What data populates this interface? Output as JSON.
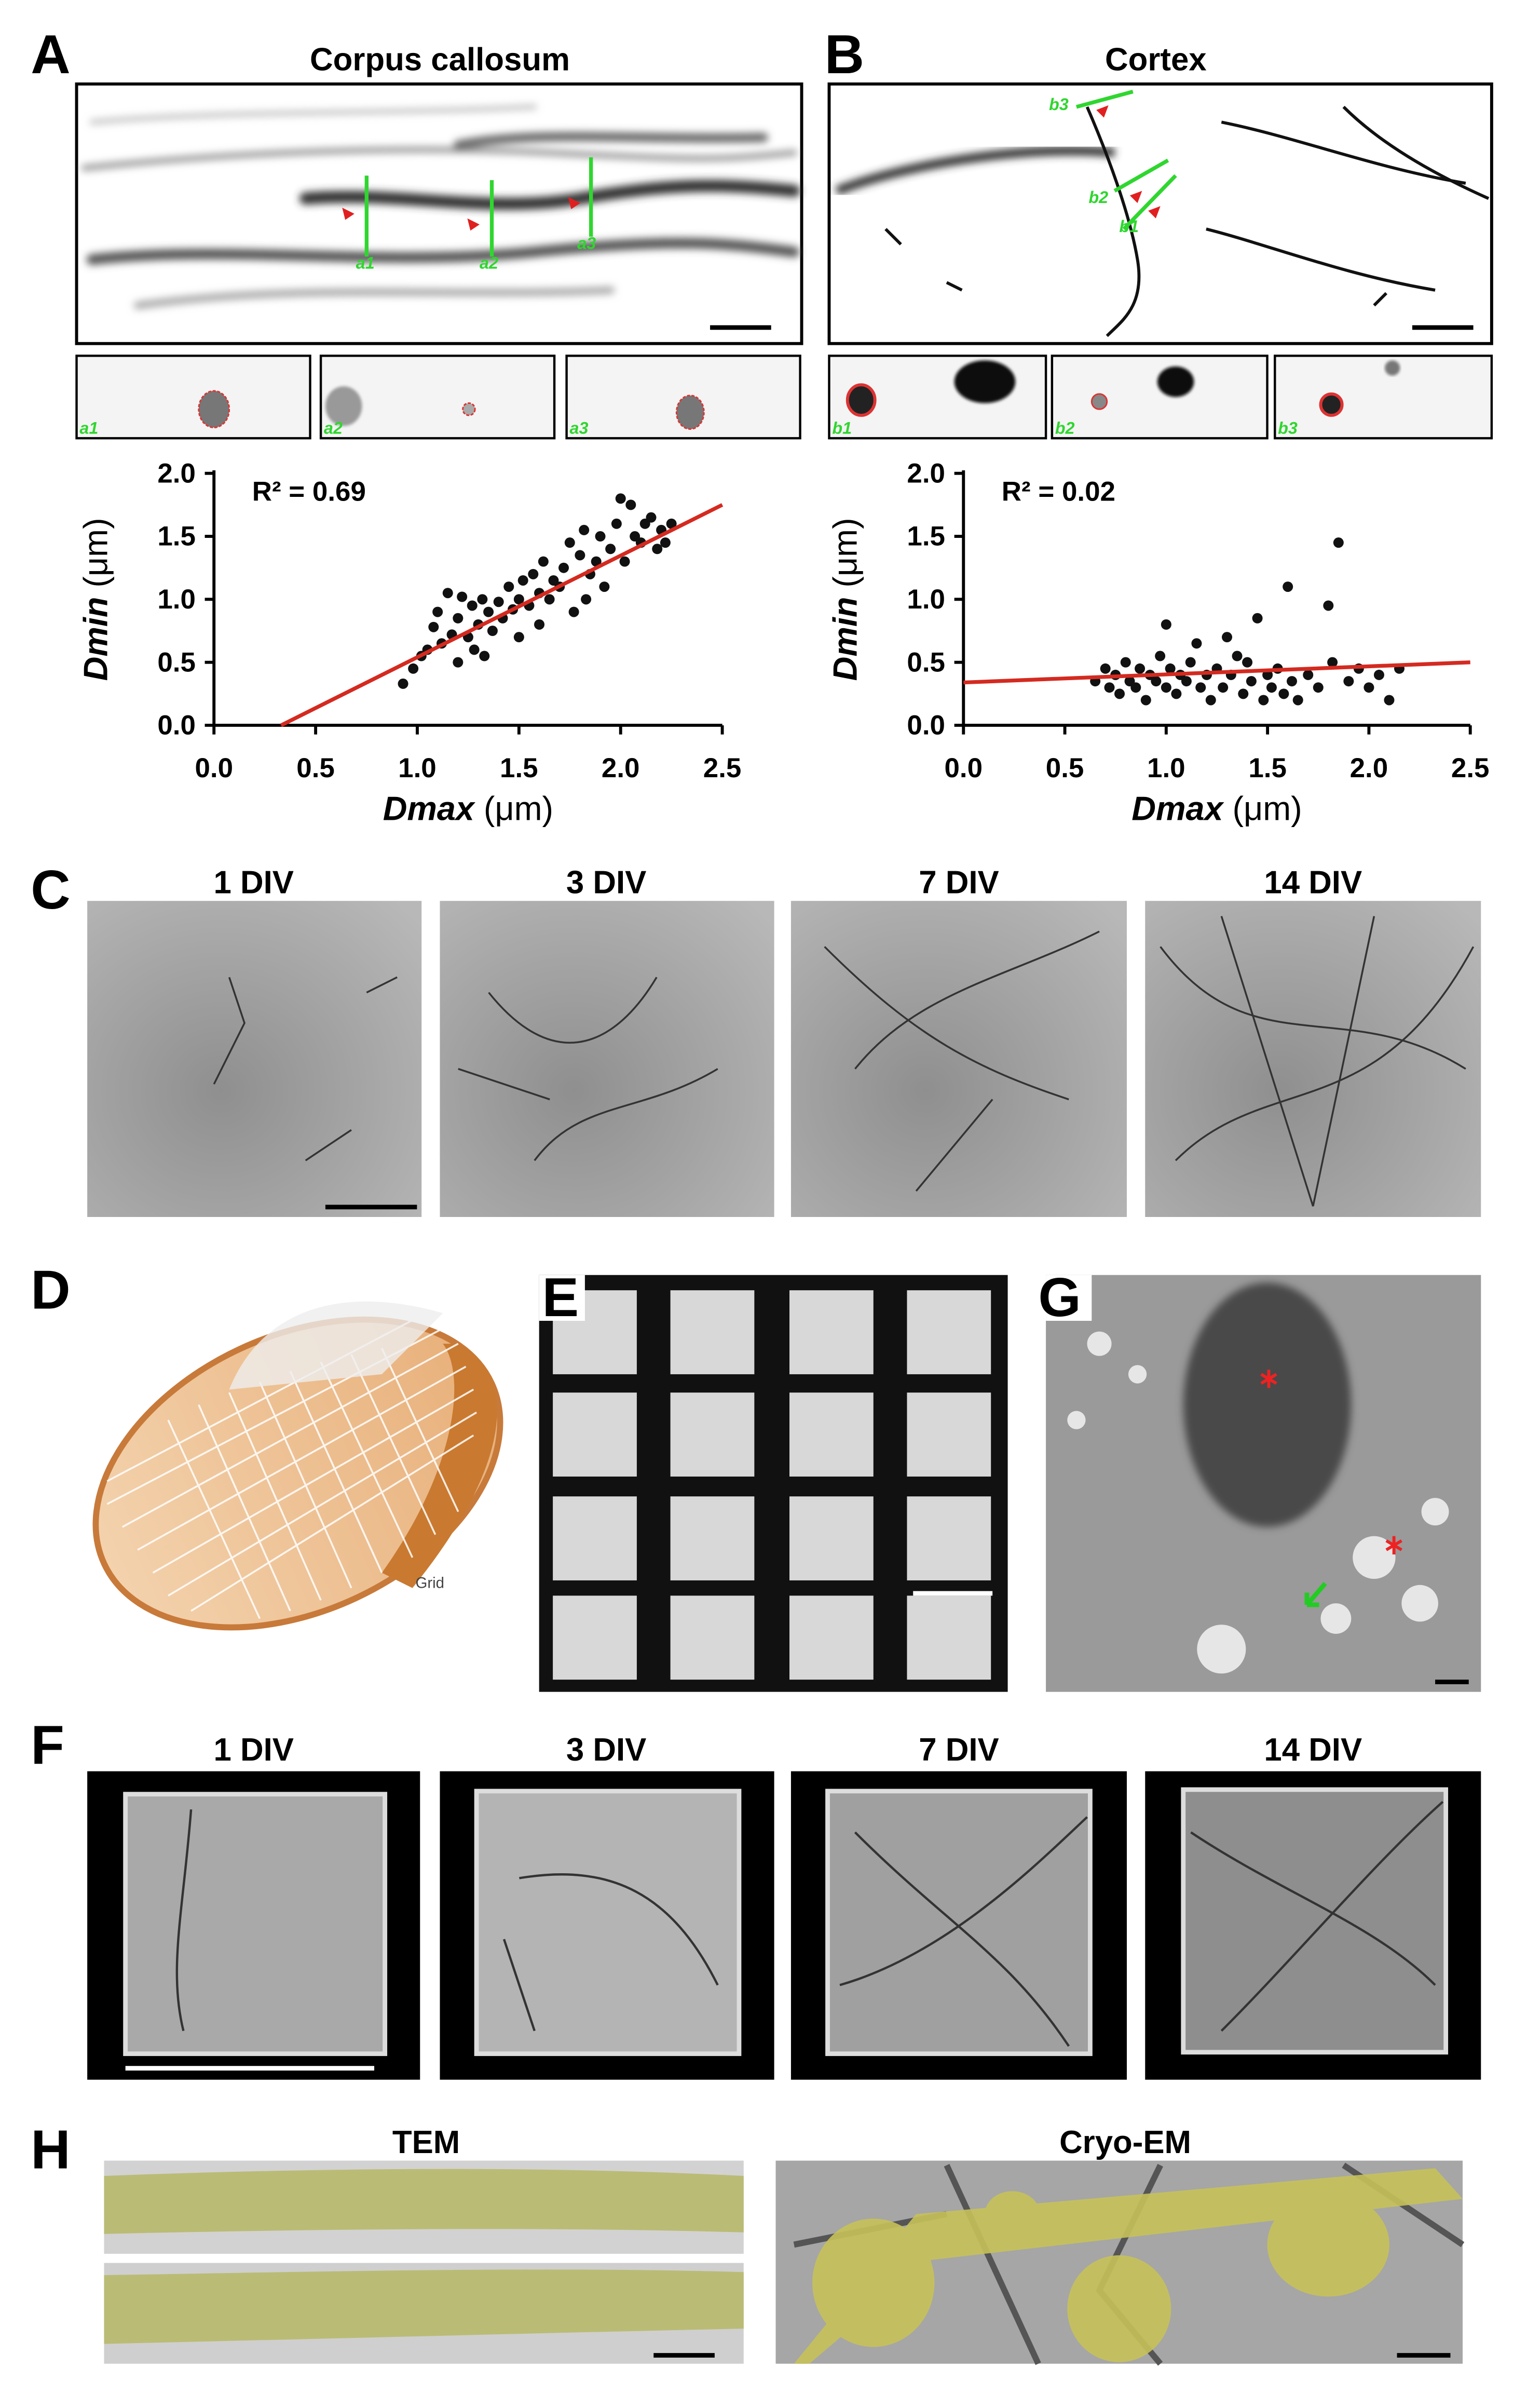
{
  "panels": {
    "A": {
      "label": "A",
      "title": "Corpus callosum",
      "image_labels": [
        "a1",
        "a2",
        "a3"
      ],
      "insets": [
        "a1",
        "a2",
        "a3"
      ]
    },
    "B": {
      "label": "B",
      "title": "Cortex",
      "image_labels": [
        "b3",
        "b2",
        "b1"
      ],
      "insets": [
        "b1",
        "b2",
        "b3"
      ]
    },
    "C": {
      "label": "C",
      "titles": [
        "1 DIV",
        "3 DIV",
        "7 DIV",
        "14 DIV"
      ]
    },
    "D": {
      "label": "D",
      "grid_label": "Grid"
    },
    "E": {
      "label": "E"
    },
    "G": {
      "label": "G"
    },
    "F": {
      "label": "F",
      "titles": [
        "1 DIV",
        "3 DIV",
        "7 DIV",
        "14 DIV"
      ]
    },
    "H": {
      "label": "H",
      "titles": [
        "TEM",
        "Cryo-EM"
      ]
    }
  },
  "chart_data": [
    {
      "type": "scatter",
      "annotation": "R² = 0.69",
      "x_label": {
        "var": "Dmax",
        "unit": "(μm)"
      },
      "y_label": {
        "var": "Dmin",
        "unit": "(μm)"
      },
      "xlim": [
        0,
        2.5
      ],
      "ylim": [
        0,
        2
      ],
      "xticks": [
        {
          "value": 0,
          "label": "0.0"
        },
        0.5,
        {
          "value": 1,
          "label": "1.0"
        },
        1.5,
        {
          "value": 2,
          "label": "2.0"
        },
        2.5
      ],
      "yticks": [
        {
          "value": 0,
          "label": "0.0"
        },
        0.5,
        {
          "value": 1,
          "label": "1.0"
        },
        1.5,
        {
          "value": 2,
          "label": "2.0"
        }
      ],
      "color": "#111111",
      "fit_color": "#d42a20",
      "grid": false,
      "fit": {
        "x": [
          0.33,
          2.5
        ],
        "y": [
          0,
          1.75
        ]
      },
      "x": [
        0.93,
        0.98,
        1.02,
        1.05,
        1.08,
        1.1,
        1.12,
        1.15,
        1.17,
        1.2,
        1.2,
        1.22,
        1.25,
        1.27,
        1.28,
        1.3,
        1.32,
        1.33,
        1.35,
        1.37,
        1.4,
        1.42,
        1.45,
        1.47,
        1.5,
        1.5,
        1.52,
        1.55,
        1.57,
        1.6,
        1.6,
        1.62,
        1.65,
        1.67,
        1.7,
        1.72,
        1.75,
        1.77,
        1.8,
        1.82,
        1.83,
        1.85,
        1.88,
        1.9,
        1.92,
        1.95,
        1.98,
        2.0,
        2.02,
        2.05,
        2.07,
        2.1,
        2.12,
        2.15,
        2.18,
        2.2,
        2.22,
        2.25
      ],
      "y": [
        0.33,
        0.45,
        0.55,
        0.6,
        0.78,
        0.9,
        0.65,
        1.05,
        0.72,
        0.5,
        0.85,
        1.02,
        0.7,
        0.95,
        0.6,
        0.8,
        1.0,
        0.55,
        0.9,
        0.75,
        0.98,
        0.85,
        1.1,
        0.92,
        0.7,
        1.0,
        1.15,
        0.95,
        1.2,
        1.05,
        0.8,
        1.3,
        1.0,
        1.15,
        1.1,
        1.25,
        1.45,
        0.9,
        1.35,
        1.55,
        1.0,
        1.2,
        1.3,
        1.5,
        1.1,
        1.4,
        1.6,
        1.8,
        1.3,
        1.75,
        1.5,
        1.45,
        1.6,
        1.65,
        1.4,
        1.55,
        1.45,
        1.6
      ]
    },
    {
      "type": "scatter",
      "annotation": "R² = 0.02",
      "x_label": {
        "var": "Dmax",
        "unit": "(μm)"
      },
      "y_label": {
        "var": "Dmin",
        "unit": "(μm)"
      },
      "xlim": [
        0,
        2.5
      ],
      "ylim": [
        0,
        2
      ],
      "xticks": [
        {
          "value": 0,
          "label": "0.0"
        },
        0.5,
        {
          "value": 1,
          "label": "1.0"
        },
        1.5,
        {
          "value": 2,
          "label": "2.0"
        },
        2.5
      ],
      "yticks": [
        {
          "value": 0,
          "label": "0.0"
        },
        0.5,
        {
          "value": 1,
          "label": "1.0"
        },
        1.5,
        {
          "value": 2,
          "label": "2.0"
        }
      ],
      "color": "#111111",
      "fit_color": "#d42a20",
      "grid": false,
      "fit": {
        "x": [
          0,
          2.5
        ],
        "y": [
          0.34,
          0.5
        ]
      },
      "x": [
        0.65,
        0.7,
        0.72,
        0.75,
        0.77,
        0.8,
        0.82,
        0.85,
        0.87,
        0.9,
        0.92,
        0.95,
        0.97,
        1.0,
        1.0,
        1.02,
        1.05,
        1.07,
        1.1,
        1.12,
        1.15,
        1.17,
        1.2,
        1.22,
        1.25,
        1.28,
        1.3,
        1.32,
        1.35,
        1.38,
        1.4,
        1.42,
        1.45,
        1.48,
        1.5,
        1.52,
        1.55,
        1.58,
        1.6,
        1.62,
        1.65,
        1.7,
        1.75,
        1.8,
        1.82,
        1.85,
        1.9,
        1.95,
        2.0,
        2.05,
        2.1,
        2.15
      ],
      "y": [
        0.35,
        0.45,
        0.3,
        0.4,
        0.25,
        0.5,
        0.35,
        0.3,
        0.45,
        0.2,
        0.4,
        0.35,
        0.55,
        0.8,
        0.3,
        0.45,
        0.25,
        0.4,
        0.35,
        0.5,
        0.65,
        0.3,
        0.4,
        0.2,
        0.45,
        0.3,
        0.7,
        0.4,
        0.55,
        0.25,
        0.5,
        0.35,
        0.85,
        0.2,
        0.4,
        0.3,
        0.45,
        0.25,
        1.1,
        0.35,
        0.2,
        0.4,
        0.3,
        0.95,
        0.5,
        1.45,
        0.35,
        0.45,
        0.3,
        0.4,
        0.2,
        0.45
      ]
    }
  ]
}
